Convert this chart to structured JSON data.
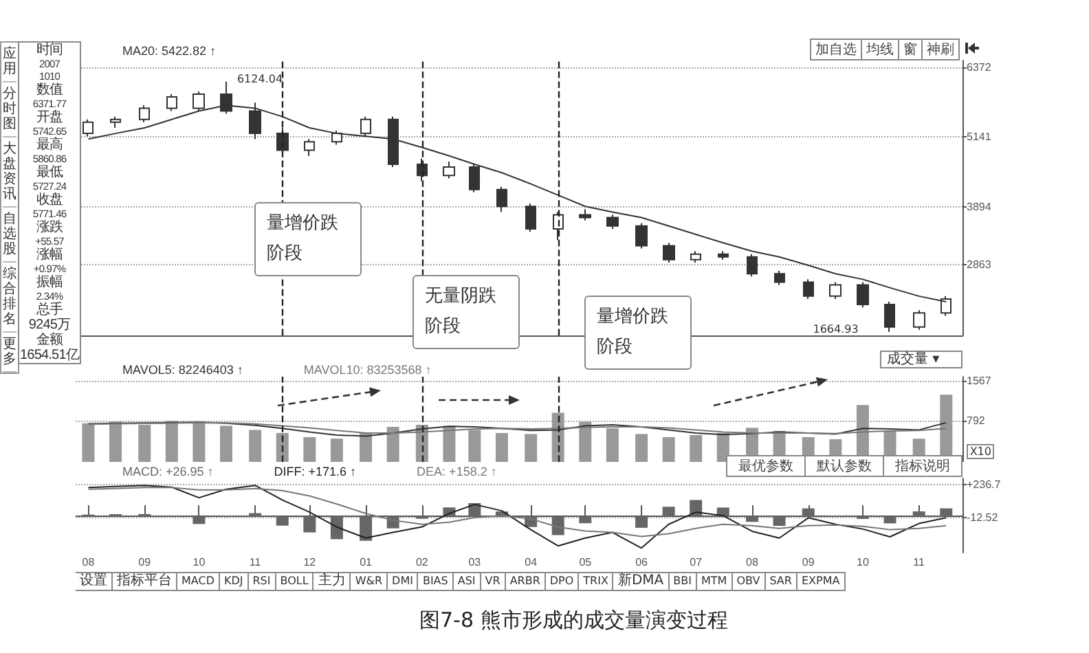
{
  "chart_data": [
    {
      "type": "candlestick",
      "x": [
        "2007-08-01",
        "2007-08-16",
        "2007-09-01",
        "2007-09-16",
        "2007-10-01",
        "2007-10-16",
        "2007-11-01",
        "2007-11-16",
        "2007-12-01",
        "2007-12-16",
        "2008-01-01",
        "2008-01-16",
        "2008-02-01",
        "2008-02-16",
        "2008-03-01",
        "2008-03-16",
        "2008-04-01",
        "2008-04-16",
        "2008-05-01",
        "2008-05-16",
        "2008-06-01",
        "2008-06-16",
        "2008-07-01",
        "2008-07-16",
        "2008-08-01",
        "2008-08-16",
        "2008-09-01",
        "2008-09-16",
        "2008-10-01",
        "2008-10-16",
        "2008-11-01",
        "2008-11-16"
      ],
      "series": [
        {
          "color": "#333333",
          "ohlc": [
            [
              5200,
              5450,
              5150,
              5400
            ],
            [
              5400,
              5500,
              5300,
              5450
            ],
            [
              5450,
              5700,
              5400,
              5650
            ],
            [
              5650,
              5900,
              5600,
              5850
            ],
            [
              5650,
              5950,
              5600,
              5900
            ],
            [
              5900,
              6124.04,
              5550,
              5600
            ],
            [
              5600,
              5750,
              5100,
              5200
            ],
            [
              5200,
              5300,
              4800,
              4900
            ],
            [
              4900,
              5100,
              4800,
              5050
            ],
            [
              5050,
              5250,
              5000,
              5200
            ],
            [
              5200,
              5500,
              5150,
              5450
            ],
            [
              5450,
              5500,
              4600,
              4650
            ],
            [
              4650,
              4750,
              4350,
              4450
            ],
            [
              4450,
              4700,
              4400,
              4600
            ],
            [
              4600,
              4650,
              4150,
              4200
            ],
            [
              4200,
              4250,
              3800,
              3900
            ],
            [
              3900,
              3950,
              3450,
              3500
            ],
            [
              3500,
              3800,
              3300,
              3750
            ],
            [
              3750,
              3850,
              3650,
              3700
            ],
            [
              3700,
              3750,
              3500,
              3550
            ],
            [
              3550,
              3600,
              3150,
              3200
            ],
            [
              3200,
              3250,
              2900,
              2950
            ],
            [
              2950,
              3100,
              2900,
              3050
            ],
            [
              3050,
              3100,
              2950,
              3000
            ],
            [
              3000,
              3050,
              2650,
              2700
            ],
            [
              2700,
              2750,
              2500,
              2550
            ],
            [
              2550,
              2600,
              2250,
              2300
            ],
            [
              2300,
              2550,
              2250,
              2500
            ],
            [
              2500,
              2550,
              2100,
              2150
            ],
            [
              2150,
              2200,
              1664.93,
              1750
            ],
            [
              1750,
              2050,
              1700,
              2000
            ],
            [
              2000,
              2300,
              1950,
              2250
            ]
          ]
        },
        {
          "type": "line",
          "name": "MA20: 5422.82 ↑",
          "color": "#333333",
          "values": [
            5100,
            5200,
            5300,
            5450,
            5600,
            5700,
            5650,
            5500,
            5300,
            5200,
            5150,
            5100,
            4950,
            4800,
            4650,
            4500,
            4300,
            4100,
            3900,
            3800,
            3700,
            3550,
            3400,
            3250,
            3100,
            3000,
            2850,
            2700,
            2600,
            2450,
            2300,
            2200
          ]
        }
      ],
      "xlim": [
        "2007-07-25",
        "2008-11-25"
      ],
      "ylim": [
        1600,
        6500
      ],
      "yticks": [
        2863,
        3894,
        5141,
        6372
      ],
      "tick_labels": "y",
      "grid": "y",
      "legend": "top left",
      "marker": "none",
      "ref_lines": [
        {
          "axis": "x",
          "value": "2007-11-16",
          "line_style": "dashed",
          "color": "#222222"
        },
        {
          "axis": "x",
          "value": "2008-02-01",
          "line_style": "dashed",
          "color": "#222222"
        },
        {
          "axis": "x",
          "value": "2008-04-16",
          "line_style": "dashed",
          "color": "#222222"
        }
      ],
      "annotations": [
        {
          "text": "6124.04",
          "x": "2007-10-16",
          "y": 6124.04
        },
        {
          "text": "1664.93",
          "x": "2008-10-16",
          "y": 1664.93
        },
        "量增价跌阶段",
        "无量阴跌阶段",
        "量增价跌阶段",
        "应用",
        "分时图",
        "大盘资讯",
        "自选股",
        "综合排名",
        "更多",
        "时间",
        "2007",
        "1010",
        "数值",
        "6371.77",
        "开盘",
        "5742.65",
        "最高",
        "5860.86",
        "最低",
        "5727.24",
        "收盘",
        "5771.46",
        "涨跌",
        "+55.57",
        "涨幅",
        "+0.97%",
        "振幅",
        "2.34%",
        "总手",
        "9245万",
        "金额",
        "1654.51亿",
        "加自选",
        "均线",
        "窗",
        "神刷"
      ]
    },
    {
      "type": "bar",
      "x": [
        "2007-08-01",
        "2007-08-16",
        "2007-09-01",
        "2007-09-16",
        "2007-10-01",
        "2007-10-16",
        "2007-11-01",
        "2007-11-16",
        "2007-12-01",
        "2007-12-16",
        "2008-01-01",
        "2008-01-16",
        "2008-02-01",
        "2008-02-16",
        "2008-03-01",
        "2008-03-16",
        "2008-04-01",
        "2008-04-16",
        "2008-05-01",
        "2008-05-16",
        "2008-06-01",
        "2008-06-16",
        "2008-07-01",
        "2008-07-16",
        "2008-08-01",
        "2008-08-16",
        "2008-09-01",
        "2008-09-16",
        "2008-10-01",
        "2008-10-16",
        "2008-11-01",
        "2008-11-16"
      ],
      "series": [
        {
          "color": "#999999",
          "values": [
            750,
            780,
            720,
            800,
            760,
            700,
            620,
            560,
            480,
            450,
            560,
            680,
            720,
            700,
            620,
            560,
            540,
            950,
            780,
            650,
            540,
            480,
            520,
            560,
            660,
            600,
            480,
            440,
            1100,
            600,
            450,
            1300
          ]
        },
        {
          "type": "line",
          "name": "MAVOL5: 82246403 ↑",
          "color": "#333333",
          "values": [
            740,
            750,
            755,
            760,
            770,
            750,
            710,
            650,
            580,
            520,
            500,
            560,
            640,
            690,
            680,
            650,
            610,
            620,
            700,
            720,
            680,
            620,
            560,
            530,
            550,
            580,
            560,
            540,
            650,
            640,
            620,
            760
          ]
        },
        {
          "type": "line",
          "name": "MAVOL10: 83253568 ↑",
          "color": "#777777",
          "values": [
            730,
            740,
            745,
            750,
            760,
            755,
            735,
            700,
            660,
            610,
            560,
            560,
            580,
            610,
            640,
            650,
            640,
            650,
            670,
            680,
            680,
            660,
            620,
            580,
            560,
            560,
            560,
            550,
            580,
            600,
            610,
            650
          ]
        }
      ],
      "xlim": [
        "2007-07-25",
        "2008-11-25"
      ],
      "ylim": [
        0,
        1650
      ],
      "yticks": [
        792,
        1567
      ],
      "tick_labels": "y",
      "grid": "y",
      "legend": "top left",
      "marker": "none",
      "ref_lines": [
        {
          "axis": "x",
          "value": "2007-11-16",
          "line_style": "dashed",
          "color": "#222222"
        },
        {
          "axis": "x",
          "value": "2008-02-01",
          "line_style": "dashed",
          "color": "#222222"
        },
        {
          "axis": "x",
          "value": "2008-04-16",
          "line_style": "dashed",
          "color": "#222222"
        }
      ],
      "annotations": [
        "成交量 ▾",
        "X10"
      ]
    },
    {
      "type": "bar",
      "x": [
        "2007-08-01",
        "2007-08-16",
        "2007-09-01",
        "2007-09-16",
        "2007-10-01",
        "2007-10-16",
        "2007-11-01",
        "2007-11-16",
        "2007-12-01",
        "2007-12-16",
        "2008-01-01",
        "2008-01-16",
        "2008-02-01",
        "2008-02-16",
        "2008-03-01",
        "2008-03-16",
        "2008-04-01",
        "2008-04-16",
        "2008-05-01",
        "2008-05-16",
        "2008-06-01",
        "2008-06-16",
        "2008-07-01",
        "2008-07-16",
        "2008-08-01",
        "2008-08-16",
        "2008-09-01",
        "2008-09-16",
        "2008-10-01",
        "2008-10-16",
        "2008-11-01",
        "2008-11-16"
      ],
      "series": [
        {
          "name": "MACD: +26.95 ↑",
          "color": "#666666",
          "values": [
            12,
            15,
            16,
            3,
            -58,
            5,
            23,
            -70,
            -120,
            -170,
            -182,
            -90,
            -19,
            65,
            97,
            35,
            -80,
            -140,
            -52,
            0,
            -86,
            70,
            120,
            64,
            -42,
            -72,
            58,
            5,
            -20,
            -53,
            36,
            58
          ]
        },
        {
          "type": "line",
          "name": "DIFF: +171.6 ↑",
          "color": "#222222",
          "values": [
            212,
            220,
            228,
            215,
            137,
            200,
            228,
            120,
            30,
            -80,
            -162,
            -120,
            -79,
            20,
            87,
            40,
            -100,
            -220,
            -162,
            -120,
            -236,
            -60,
            30,
            4,
            -112,
            -162,
            -12,
            -60,
            -95,
            -153,
            -54,
            -12
          ]
        },
        {
          "type": "line",
          "name": "DEA: +158.2 ↑",
          "color": "#777777",
          "values": [
            200,
            205,
            212,
            212,
            195,
            195,
            205,
            190,
            150,
            90,
            20,
            -30,
            -60,
            -45,
            -10,
            5,
            -20,
            -80,
            -110,
            -120,
            -150,
            -130,
            -90,
            -60,
            -70,
            -90,
            -70,
            -65,
            -75,
            -100,
            -90,
            -70
          ]
        }
      ],
      "xlim": [
        "2007-07-25",
        "2008-11-25"
      ],
      "xticks": [
        {
          "value": "2007-08-01",
          "label": "08"
        },
        {
          "value": "2007-09-01",
          "label": "09"
        },
        {
          "value": "2007-10-01",
          "label": "10"
        },
        {
          "value": "2007-11-01",
          "label": "11"
        },
        {
          "value": "2007-12-01",
          "label": "12"
        },
        {
          "value": "2008-01-01",
          "label": "01"
        },
        {
          "value": "2008-02-01",
          "label": "02"
        },
        {
          "value": "2008-03-01",
          "label": "03"
        },
        {
          "value": "2008-04-01",
          "label": "04"
        },
        {
          "value": "2008-05-01",
          "label": "05"
        },
        {
          "value": "2008-06-01",
          "label": "06"
        },
        {
          "value": "2008-07-01",
          "label": "07"
        },
        {
          "value": "2008-08-01",
          "label": "08"
        },
        {
          "value": "2008-09-01",
          "label": "09"
        },
        {
          "value": "2008-10-01",
          "label": "10"
        },
        {
          "value": "2008-11-01",
          "label": "11"
        }
      ],
      "ylim": [
        -270,
        280
      ],
      "yticks": [
        -12.52,
        {
          "value": 236.7,
          "label": "+236.7"
        }
      ],
      "grid": "y",
      "legend": "top left",
      "marker": "none",
      "annotations": [
        "最优参数",
        "默认参数",
        "指标说明",
        "设置",
        "指标平台",
        "MACD",
        "KDJ",
        "RSI",
        "BOLL",
        "主力",
        "W&R",
        "DMI",
        "BIAS",
        "ASI",
        "VR",
        "ARBR",
        "DPO",
        "TRIX",
        "新DMA",
        "BBI",
        "MTM",
        "OBV",
        "SAR",
        "EXPMA",
        "图7-8 熊市形成的成交量演变过程"
      ]
    }
  ]
}
